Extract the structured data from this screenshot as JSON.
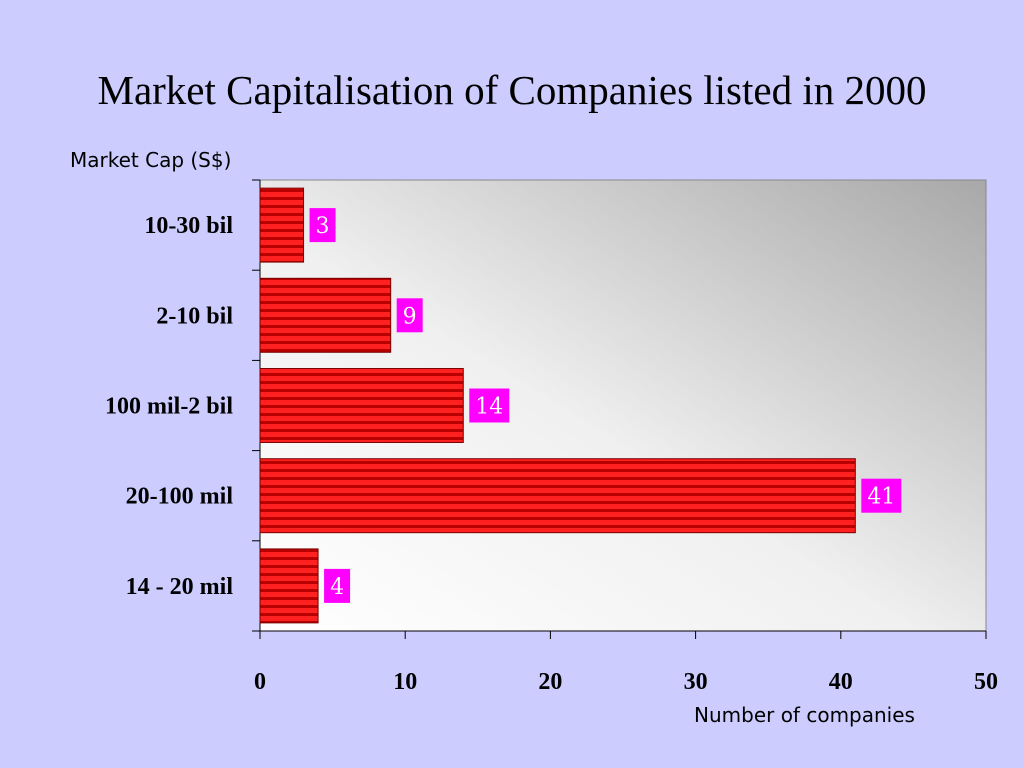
{
  "chart_data": {
    "type": "bar",
    "orientation": "horizontal",
    "title": "Market Capitalisation of Companies listed in 2000",
    "ylabel": "Market Cap (S$)",
    "xlabel": "Number of companies",
    "categories": [
      "10-30 bil",
      "2-10 bil",
      "100 mil-2 bil",
      "20-100 mil",
      "14 - 20 mil"
    ],
    "values": [
      3,
      9,
      14,
      41,
      4
    ],
    "xlim": [
      0,
      50
    ],
    "xticks": [
      0,
      10,
      20,
      30,
      40,
      50
    ],
    "grid": false,
    "bar_color": "#ff1a1a",
    "data_label_bg": "#ff00ff",
    "background": "#ccccff"
  }
}
